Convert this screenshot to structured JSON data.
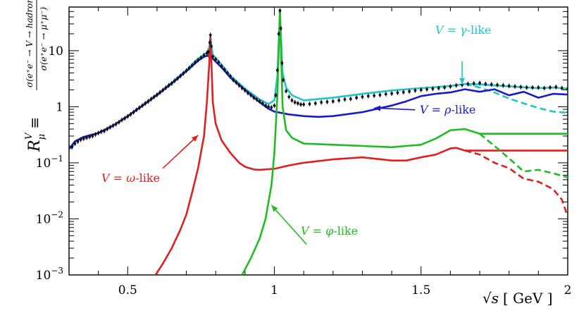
{
  "chart_data": {
    "type": "line",
    "title": "",
    "xlabel": "√s [GeV]",
    "ylabel": "R^V_μ ≡ σ(e⁺e⁻→V→hadrons)/σ(e⁺e⁻→μ⁺μ⁻)",
    "ylabel_parts": {
      "symbol": "R",
      "sup": "V",
      "sub": "μ",
      "equiv": "≡",
      "numerator": "σ(e⁺e⁻ → V → hadrons)",
      "denominator": "σ(e⁺e⁻ → μ⁺μ⁻)"
    },
    "xlabel_parts": {
      "sqrt": "√s",
      "unit": "[ GeV ]"
    },
    "xlim": [
      0.3,
      2.0
    ],
    "ylim": [
      0.001,
      60
    ],
    "yscale": "log",
    "x_ticks": [
      {
        "value": 0.5,
        "label": "0.5"
      },
      {
        "value": 1.0,
        "label": "1"
      },
      {
        "value": 1.5,
        "label": "1.5"
      },
      {
        "value": 2.0,
        "label": "2"
      }
    ],
    "y_ticks": [
      {
        "value": 0.001,
        "base": "10",
        "exp": "−3"
      },
      {
        "value": 0.01,
        "base": "10",
        "exp": "−2"
      },
      {
        "value": 0.1,
        "base": "10",
        "exp": "−1"
      },
      {
        "value": 1,
        "base": "1",
        "exp": ""
      },
      {
        "value": 10,
        "base": "10",
        "exp": ""
      }
    ],
    "colors": {
      "gamma": "#22c4c8",
      "rho": "#1a1acc",
      "omega": "#e02020",
      "phi": "#22bb22",
      "data": "#111111"
    },
    "series": [
      {
        "name": "V = γ-like",
        "color_key": "gamma",
        "points": [
          [
            0.3,
            0.175
          ],
          [
            0.32,
            0.24
          ],
          [
            0.35,
            0.29
          ],
          [
            0.4,
            0.34
          ],
          [
            0.45,
            0.46
          ],
          [
            0.5,
            0.68
          ],
          [
            0.55,
            1.05
          ],
          [
            0.6,
            1.65
          ],
          [
            0.65,
            2.7
          ],
          [
            0.7,
            4.5
          ],
          [
            0.74,
            7.2
          ],
          [
            0.77,
            9.2
          ],
          [
            0.778,
            11.5
          ],
          [
            0.782,
            18
          ],
          [
            0.786,
            12
          ],
          [
            0.79,
            8.5
          ],
          [
            0.82,
            5.6
          ],
          [
            0.85,
            3.6
          ],
          [
            0.9,
            2.1
          ],
          [
            0.95,
            1.35
          ],
          [
            0.98,
            1.12
          ],
          [
            1.0,
            1.3
          ],
          [
            1.01,
            3.5
          ],
          [
            1.019,
            50
          ],
          [
            1.028,
            4.0
          ],
          [
            1.04,
            2.2
          ],
          [
            1.06,
            1.6
          ],
          [
            1.1,
            1.3
          ],
          [
            1.2,
            1.45
          ],
          [
            1.3,
            1.7
          ],
          [
            1.4,
            1.95
          ],
          [
            1.5,
            2.15
          ],
          [
            1.6,
            2.35
          ],
          [
            1.65,
            2.55
          ],
          [
            1.7,
            2.5
          ],
          [
            1.8,
            2.3
          ],
          [
            1.9,
            2.15
          ],
          [
            1.95,
            2.2
          ],
          [
            2.0,
            2.1
          ]
        ]
      },
      {
        "name": "γ-like extrapolation",
        "color_key": "gamma",
        "dashed": true,
        "points": [
          [
            1.65,
            2.55
          ],
          [
            1.7,
            2.2
          ],
          [
            1.75,
            1.8
          ],
          [
            1.8,
            1.4
          ],
          [
            1.85,
            1.15
          ],
          [
            1.9,
            0.95
          ],
          [
            1.95,
            0.82
          ],
          [
            2.0,
            0.78
          ]
        ]
      },
      {
        "name": "V = ρ-like",
        "color_key": "rho",
        "points": [
          [
            0.3,
            0.175
          ],
          [
            0.32,
            0.24
          ],
          [
            0.35,
            0.29
          ],
          [
            0.4,
            0.34
          ],
          [
            0.45,
            0.46
          ],
          [
            0.5,
            0.68
          ],
          [
            0.55,
            1.04
          ],
          [
            0.6,
            1.62
          ],
          [
            0.65,
            2.6
          ],
          [
            0.7,
            4.3
          ],
          [
            0.74,
            6.6
          ],
          [
            0.76,
            7.8
          ],
          [
            0.775,
            8.2
          ],
          [
            0.78,
            7.3
          ],
          [
            0.79,
            7.2
          ],
          [
            0.82,
            5.0
          ],
          [
            0.85,
            3.3
          ],
          [
            0.9,
            2.0
          ],
          [
            0.95,
            1.2
          ],
          [
            0.98,
            0.92
          ],
          [
            1.0,
            0.82
          ],
          [
            1.05,
            0.73
          ],
          [
            1.1,
            0.68
          ],
          [
            1.15,
            0.66
          ],
          [
            1.2,
            0.68
          ],
          [
            1.3,
            0.8
          ],
          [
            1.4,
            1.05
          ],
          [
            1.45,
            1.25
          ],
          [
            1.5,
            1.55
          ],
          [
            1.55,
            1.7
          ],
          [
            1.6,
            1.8
          ],
          [
            1.65,
            2.05
          ],
          [
            1.7,
            1.85
          ],
          [
            1.75,
            2.05
          ],
          [
            1.8,
            1.6
          ],
          [
            1.85,
            1.85
          ],
          [
            1.9,
            1.45
          ],
          [
            1.95,
            1.7
          ],
          [
            2.0,
            1.65
          ]
        ]
      },
      {
        "name": "V = ω-like",
        "color_key": "omega",
        "points": [
          [
            0.595,
            0.001
          ],
          [
            0.62,
            0.0016
          ],
          [
            0.65,
            0.003
          ],
          [
            0.68,
            0.0065
          ],
          [
            0.7,
            0.012
          ],
          [
            0.72,
            0.03
          ],
          [
            0.74,
            0.08
          ],
          [
            0.76,
            0.3
          ],
          [
            0.77,
            1.2
          ],
          [
            0.778,
            6
          ],
          [
            0.782,
            17
          ],
          [
            0.786,
            5
          ],
          [
            0.79,
            1.2
          ],
          [
            0.8,
            0.5
          ],
          [
            0.82,
            0.25
          ],
          [
            0.85,
            0.15
          ],
          [
            0.88,
            0.1
          ],
          [
            0.9,
            0.085
          ],
          [
            0.93,
            0.076
          ],
          [
            0.95,
            0.075
          ],
          [
            1.0,
            0.078
          ],
          [
            1.05,
            0.09
          ],
          [
            1.1,
            0.1
          ],
          [
            1.2,
            0.115
          ],
          [
            1.3,
            0.125
          ],
          [
            1.4,
            0.11
          ],
          [
            1.45,
            0.11
          ],
          [
            1.5,
            0.125
          ],
          [
            1.55,
            0.14
          ],
          [
            1.6,
            0.18
          ],
          [
            1.62,
            0.185
          ],
          [
            1.65,
            0.165
          ],
          [
            1.7,
            0.165
          ],
          [
            1.8,
            0.165
          ],
          [
            1.9,
            0.165
          ],
          [
            2.0,
            0.165
          ]
        ]
      },
      {
        "name": "ω-like extrapolation",
        "color_key": "omega",
        "dashed": true,
        "points": [
          [
            1.65,
            0.165
          ],
          [
            1.7,
            0.14
          ],
          [
            1.75,
            0.1
          ],
          [
            1.8,
            0.08
          ],
          [
            1.85,
            0.052
          ],
          [
            1.9,
            0.046
          ],
          [
            1.95,
            0.034
          ],
          [
            1.98,
            0.022
          ],
          [
            2.0,
            0.011
          ]
        ]
      },
      {
        "name": "V = φ-like",
        "color_key": "phi",
        "points": [
          [
            0.89,
            0.001
          ],
          [
            0.92,
            0.002
          ],
          [
            0.95,
            0.0045
          ],
          [
            0.97,
            0.01
          ],
          [
            0.99,
            0.04
          ],
          [
            1.0,
            0.15
          ],
          [
            1.01,
            1.5
          ],
          [
            1.019,
            50
          ],
          [
            1.028,
            1.0
          ],
          [
            1.04,
            0.38
          ],
          [
            1.06,
            0.28
          ],
          [
            1.1,
            0.22
          ],
          [
            1.2,
            0.21
          ],
          [
            1.3,
            0.2
          ],
          [
            1.4,
            0.19
          ],
          [
            1.45,
            0.2
          ],
          [
            1.5,
            0.21
          ],
          [
            1.55,
            0.27
          ],
          [
            1.6,
            0.38
          ],
          [
            1.65,
            0.4
          ],
          [
            1.7,
            0.33
          ],
          [
            1.8,
            0.33
          ],
          [
            1.9,
            0.33
          ],
          [
            2.0,
            0.33
          ]
        ]
      },
      {
        "name": "φ-like extrapolation",
        "color_key": "phi",
        "dashed": true,
        "points": [
          [
            1.7,
            0.33
          ],
          [
            1.75,
            0.2
          ],
          [
            1.8,
            0.12
          ],
          [
            1.85,
            0.07
          ],
          [
            1.9,
            0.075
          ],
          [
            1.95,
            0.065
          ],
          [
            2.0,
            0.055
          ]
        ]
      }
    ],
    "data_points": {
      "name": "data",
      "color_key": "data",
      "values": [
        [
          0.31,
          0.19
        ],
        [
          0.32,
          0.22
        ],
        [
          0.33,
          0.24
        ],
        [
          0.34,
          0.26
        ],
        [
          0.35,
          0.27
        ],
        [
          0.36,
          0.28
        ],
        [
          0.37,
          0.29
        ],
        [
          0.38,
          0.3
        ],
        [
          0.39,
          0.32
        ],
        [
          0.4,
          0.34
        ],
        [
          0.41,
          0.36
        ],
        [
          0.42,
          0.37
        ],
        [
          0.43,
          0.4
        ],
        [
          0.44,
          0.43
        ],
        [
          0.45,
          0.46
        ],
        [
          0.46,
          0.49
        ],
        [
          0.47,
          0.53
        ],
        [
          0.48,
          0.58
        ],
        [
          0.49,
          0.62
        ],
        [
          0.5,
          0.67
        ],
        [
          0.51,
          0.73
        ],
        [
          0.52,
          0.8
        ],
        [
          0.53,
          0.88
        ],
        [
          0.54,
          0.96
        ],
        [
          0.55,
          1.05
        ],
        [
          0.56,
          1.15
        ],
        [
          0.57,
          1.25
        ],
        [
          0.58,
          1.37
        ],
        [
          0.59,
          1.5
        ],
        [
          0.6,
          1.63
        ],
        [
          0.61,
          1.8
        ],
        [
          0.62,
          1.98
        ],
        [
          0.63,
          2.18
        ],
        [
          0.64,
          2.4
        ],
        [
          0.65,
          2.6
        ],
        [
          0.66,
          2.9
        ],
        [
          0.67,
          3.2
        ],
        [
          0.68,
          3.55
        ],
        [
          0.69,
          3.95
        ],
        [
          0.7,
          4.4
        ],
        [
          0.71,
          4.9
        ],
        [
          0.72,
          5.5
        ],
        [
          0.73,
          6.2
        ],
        [
          0.74,
          6.8
        ],
        [
          0.75,
          7.5
        ],
        [
          0.76,
          8.3
        ],
        [
          0.77,
          9.0
        ],
        [
          0.775,
          9.5
        ],
        [
          0.78,
          14
        ],
        [
          0.782,
          19
        ],
        [
          0.785,
          12
        ],
        [
          0.79,
          7.8
        ],
        [
          0.8,
          7.0
        ],
        [
          0.81,
          6.2
        ],
        [
          0.82,
          5.3
        ],
        [
          0.83,
          4.6
        ],
        [
          0.84,
          4.0
        ],
        [
          0.85,
          3.5
        ],
        [
          0.86,
          3.0
        ],
        [
          0.87,
          2.7
        ],
        [
          0.88,
          2.4
        ],
        [
          0.89,
          2.15
        ],
        [
          0.9,
          1.95
        ],
        [
          0.91,
          1.75
        ],
        [
          0.92,
          1.6
        ],
        [
          0.93,
          1.45
        ],
        [
          0.94,
          1.35
        ],
        [
          0.95,
          1.25
        ],
        [
          0.96,
          1.15
        ],
        [
          0.97,
          1.05
        ],
        [
          0.98,
          1.0
        ],
        [
          0.99,
          0.97
        ],
        [
          1.0,
          1.05
        ],
        [
          1.005,
          1.6
        ],
        [
          1.01,
          4.5
        ],
        [
          1.015,
          20
        ],
        [
          1.019,
          52
        ],
        [
          1.022,
          25
        ],
        [
          1.026,
          6
        ],
        [
          1.03,
          3.0
        ],
        [
          1.04,
          1.9
        ],
        [
          1.05,
          1.5
        ],
        [
          1.06,
          1.3
        ],
        [
          1.07,
          1.2
        ],
        [
          1.08,
          1.15
        ],
        [
          1.09,
          1.1
        ],
        [
          1.1,
          1.1
        ],
        [
          1.12,
          1.12
        ],
        [
          1.14,
          1.15
        ],
        [
          1.16,
          1.2
        ],
        [
          1.18,
          1.22
        ],
        [
          1.2,
          1.25
        ],
        [
          1.22,
          1.3
        ],
        [
          1.24,
          1.35
        ],
        [
          1.26,
          1.38
        ],
        [
          1.28,
          1.45
        ],
        [
          1.3,
          1.5
        ],
        [
          1.32,
          1.55
        ],
        [
          1.34,
          1.58
        ],
        [
          1.36,
          1.62
        ],
        [
          1.38,
          1.68
        ],
        [
          1.4,
          1.72
        ],
        [
          1.42,
          1.78
        ],
        [
          1.44,
          1.82
        ],
        [
          1.46,
          1.88
        ],
        [
          1.48,
          1.95
        ],
        [
          1.5,
          2.0
        ],
        [
          1.52,
          2.05
        ],
        [
          1.54,
          2.1
        ],
        [
          1.56,
          2.15
        ],
        [
          1.58,
          2.2
        ],
        [
          1.6,
          2.3
        ],
        [
          1.62,
          2.4
        ],
        [
          1.64,
          2.45
        ],
        [
          1.66,
          2.55
        ],
        [
          1.68,
          2.6
        ],
        [
          1.7,
          2.65
        ],
        [
          1.72,
          2.55
        ],
        [
          1.74,
          2.5
        ],
        [
          1.76,
          2.45
        ],
        [
          1.78,
          2.4
        ],
        [
          1.8,
          2.35
        ],
        [
          1.82,
          2.3
        ],
        [
          1.84,
          2.25
        ],
        [
          1.86,
          2.2
        ],
        [
          1.88,
          2.2
        ],
        [
          1.9,
          2.2
        ],
        [
          1.92,
          2.15
        ],
        [
          1.94,
          2.2
        ],
        [
          1.96,
          2.25
        ],
        [
          1.98,
          2.15
        ],
        [
          2.0,
          2.1
        ]
      ]
    },
    "annotations": [
      {
        "key": "gamma",
        "prefix": "V = ",
        "symbol": "γ",
        "suffix": "-like",
        "color_key": "gamma",
        "arrow_to": [
          1.64,
          2.5
        ],
        "arrow_from": [
          1.64,
          6.5
        ]
      },
      {
        "key": "rho",
        "prefix": "V = ",
        "symbol": "ρ",
        "suffix": "-like",
        "color_key": "rho",
        "arrow_to": [
          1.34,
          0.95
        ],
        "arrow_from": [
          1.48,
          0.88
        ]
      },
      {
        "key": "omega",
        "prefix": "V = ",
        "symbol": "ω",
        "suffix": "-like",
        "color_key": "omega",
        "arrow_to": [
          0.74,
          0.31
        ],
        "arrow_from": [
          0.62,
          0.08
        ]
      },
      {
        "key": "phi",
        "prefix": "V = ",
        "symbol": "φ",
        "suffix": "-like",
        "color_key": "phi",
        "arrow_to": [
          0.99,
          0.0175
        ],
        "arrow_from": [
          1.11,
          0.0035
        ]
      }
    ]
  }
}
